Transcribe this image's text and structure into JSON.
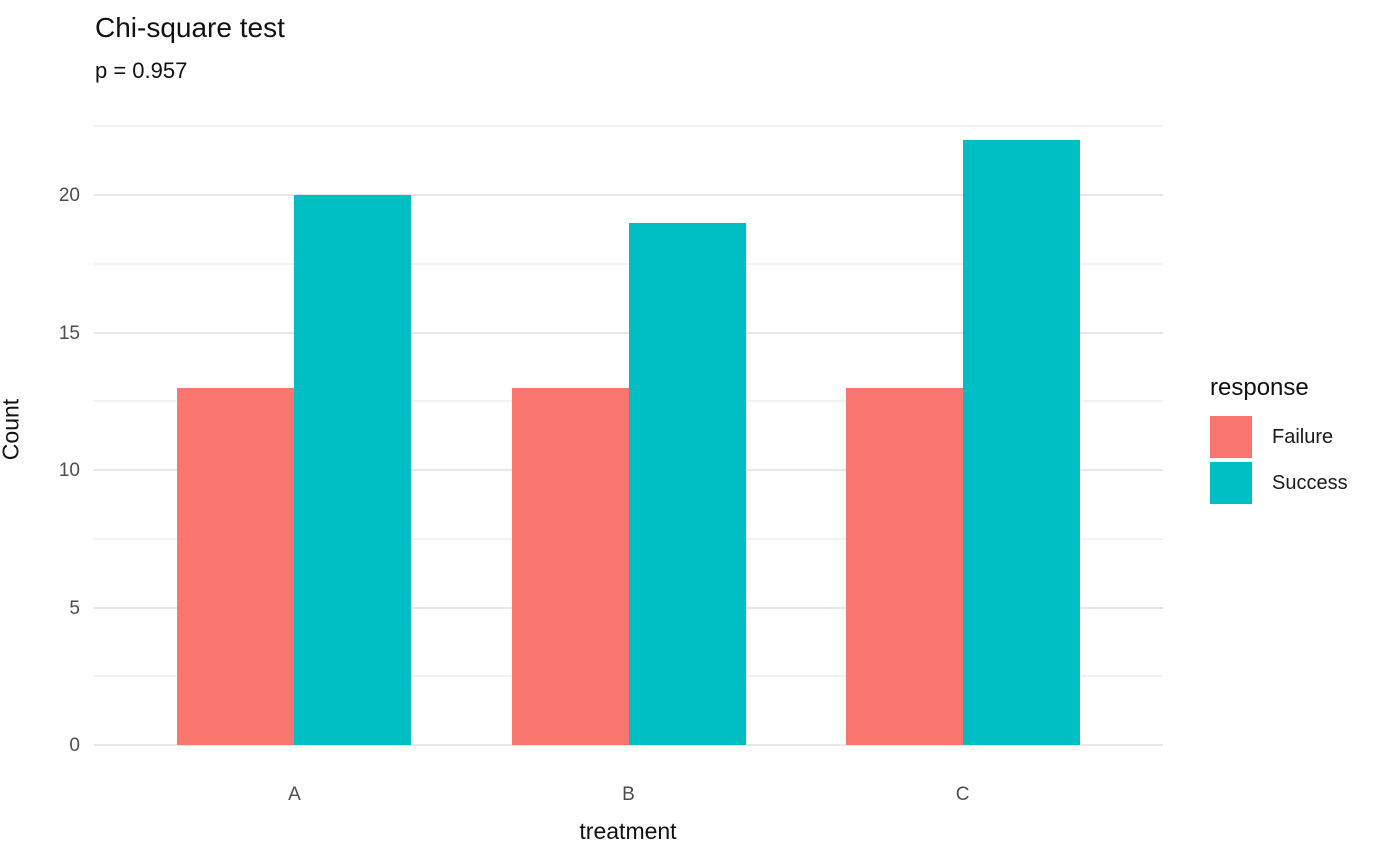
{
  "title": "Chi-square test",
  "subtitle": "p = 0.957",
  "axes": {
    "x_title": "treatment",
    "y_title": "Count",
    "y_tick_labels": [
      "0",
      "5",
      "10",
      "15",
      "20"
    ],
    "x_tick_labels": [
      "A",
      "B",
      "C"
    ]
  },
  "legend": {
    "title": "response",
    "items": [
      {
        "label": "Failure",
        "color": "#F8766D"
      },
      {
        "label": "Success",
        "color": "#00BFC4"
      }
    ]
  },
  "colors": {
    "failure": "#F8766D",
    "success": "#00BFC4",
    "grid_major": "#e7e7e7",
    "grid_minor": "#f1f1f1",
    "tick_text": "#4d4d4d",
    "text": "#111111",
    "background": "#ffffff"
  },
  "chart_data": {
    "type": "bar",
    "title": "Chi-square test",
    "subtitle": "p = 0.957",
    "xlabel": "treatment",
    "ylabel": "Count",
    "categories": [
      "A",
      "B",
      "C"
    ],
    "series": [
      {
        "name": "Failure",
        "color": "#F8766D",
        "values": [
          13,
          13,
          13
        ]
      },
      {
        "name": "Success",
        "color": "#00BFC4",
        "values": [
          20,
          19,
          22
        ]
      }
    ],
    "ylim": [
      0,
      23.1
    ],
    "y_major_ticks": [
      0,
      5,
      10,
      15,
      20
    ],
    "y_minor_ticks": [
      2.5,
      7.5,
      12.5,
      17.5,
      22.5
    ],
    "bar_layout": "dodged",
    "grid": "horizontal-only",
    "legend_title": "response",
    "legend_position": "right"
  }
}
